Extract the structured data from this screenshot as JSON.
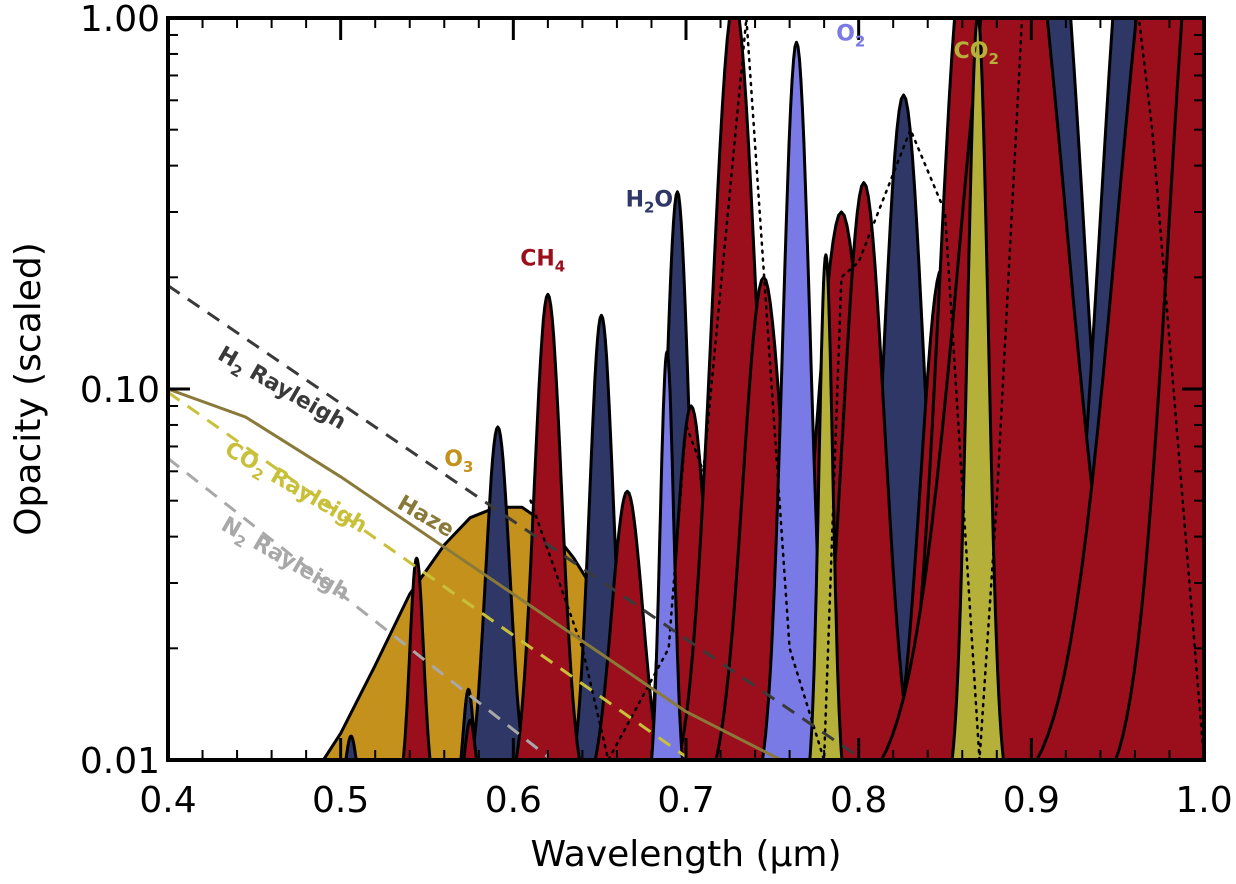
{
  "chart_data": {
    "type": "area",
    "title": "",
    "xlabel": "Wavelength (μm)",
    "ylabel": "Opacity (scaled)",
    "xlim": [
      0.4,
      1.0
    ],
    "ylim": [
      0.01,
      1.0
    ],
    "yscale": "log",
    "x_ticks": [
      {
        "value": 0.4,
        "label": "0.4"
      },
      {
        "value": 0.5,
        "label": "0.5"
      },
      {
        "value": 0.6,
        "label": "0.6"
      },
      {
        "value": 0.7,
        "label": "0.7"
      },
      {
        "value": 0.8,
        "label": "0.8"
      },
      {
        "value": 0.9,
        "label": "0.9"
      },
      {
        "value": 1.0,
        "label": "1.0"
      }
    ],
    "y_ticks": [
      {
        "value": 0.01,
        "label": "0.01"
      },
      {
        "value": 0.1,
        "label": "0.10"
      },
      {
        "value": 1.0,
        "label": "1.00"
      }
    ],
    "filled_series": [
      {
        "name": "O3",
        "label": "O3",
        "label_main": "O",
        "label_sub": "3",
        "color": "#c4921c",
        "points": [
          [
            0.49,
            0.01
          ],
          [
            0.5,
            0.0118
          ],
          [
            0.52,
            0.018
          ],
          [
            0.54,
            0.028
          ],
          [
            0.56,
            0.038
          ],
          [
            0.575,
            0.045
          ],
          [
            0.59,
            0.048
          ],
          [
            0.605,
            0.048
          ],
          [
            0.62,
            0.043
          ],
          [
            0.635,
            0.035
          ],
          [
            0.65,
            0.027
          ]
        ]
      },
      {
        "name": "H2O",
        "label": "H2O",
        "label_main": "H",
        "label_sub": "2",
        "label_tail": "O",
        "color": "#2e3766",
        "peaks": [
          [
            0.506,
            0.0116,
            0.003
          ],
          [
            0.574,
            0.0155,
            0.003
          ],
          [
            0.591,
            0.079,
            0.007
          ],
          [
            0.651,
            0.158,
            0.007
          ],
          [
            0.695,
            0.34,
            0.007
          ],
          [
            0.826,
            0.62,
            0.012
          ],
          [
            0.865,
            1.6,
            0.017
          ],
          [
            0.935,
            0.026,
            0.015
          ],
          [
            0.91,
            3.0,
            0.02
          ],
          [
            0.96,
            3.0,
            0.02
          ]
        ]
      },
      {
        "name": "CH4",
        "label": "CH4",
        "label_main": "CH",
        "label_sub": "4",
        "color": "#9b0e1c",
        "peaks": [
          [
            0.544,
            0.035,
            0.004
          ],
          [
            0.575,
            0.0128,
            0.003
          ],
          [
            0.62,
            0.18,
            0.008
          ],
          [
            0.666,
            0.053,
            0.009
          ],
          [
            0.703,
            0.09,
            0.009
          ],
          [
            0.728,
            1.12,
            0.013
          ],
          [
            0.745,
            0.2,
            0.012
          ],
          [
            0.79,
            0.3,
            0.015
          ],
          [
            0.803,
            0.36,
            0.012
          ],
          [
            0.848,
            0.21,
            0.012
          ],
          [
            0.862,
            1.6,
            0.015
          ],
          [
            0.89,
            3.0,
            0.03
          ],
          [
            0.98,
            3.0,
            0.03
          ],
          [
            1.0,
            3.0,
            0.02
          ]
        ]
      },
      {
        "name": "O2",
        "label": "O2",
        "label_main": "O",
        "label_sub": "2",
        "color": "#7a7ae6",
        "peaks": [
          [
            0.689,
            0.126,
            0.004
          ],
          [
            0.764,
            0.86,
            0.008
          ]
        ]
      },
      {
        "name": "CO2",
        "label": "CO2",
        "label_main": "CO",
        "label_sub": "2",
        "color": "#b5b03a",
        "peaks": [
          [
            0.781,
            0.23,
            0.004
          ],
          [
            0.869,
            1.02,
            0.006
          ]
        ]
      }
    ],
    "line_series": [
      {
        "name": "H2 Rayleigh",
        "label": "H2 Rayleigh",
        "label_main": "H",
        "label_sub": "2",
        "label_tail": " Rayleigh",
        "color": "#3a3a3a",
        "dash": "dashed",
        "x": [
          0.4,
          0.8
        ],
        "y": [
          0.19,
          0.0102
        ]
      },
      {
        "name": "Haze",
        "label": "Haze",
        "label_main": "Haze",
        "label_sub": "",
        "label_tail": "",
        "color": "#8a7a3a",
        "dash": "solid",
        "x": [
          0.4,
          0.445,
          0.5,
          0.6,
          0.7,
          0.755
        ],
        "y": [
          0.1,
          0.084,
          0.058,
          0.028,
          0.0135,
          0.01
        ]
      },
      {
        "name": "CO2 Rayleigh",
        "label": "CO2 Rayleigh",
        "label_main": "CO",
        "label_sub": "2",
        "label_tail": " Rayleigh",
        "color": "#c9c03a",
        "dash": "dashed",
        "x": [
          0.4,
          0.7
        ],
        "y": [
          0.098,
          0.0102
        ]
      },
      {
        "name": "N2 Rayleigh",
        "label": "N2 Rayleigh",
        "label_main": "N",
        "label_sub": "2",
        "label_tail": " Rayleigh",
        "color": "#a8a8a8",
        "dash": "dashed",
        "x": [
          0.4,
          0.62
        ],
        "y": [
          0.065,
          0.0102
        ]
      }
    ],
    "dotted_overlays": [
      {
        "name": "dotted-overlay",
        "color": "#000000",
        "x": [
          0.61,
          0.64,
          0.655,
          0.69,
          0.7,
          0.71,
          0.735,
          0.76,
          0.78,
          0.79,
          0.8,
          0.83,
          0.85,
          0.87,
          0.88,
          0.9,
          0.93,
          0.95,
          0.97,
          1.0
        ],
        "y": [
          0.05,
          0.02,
          0.01,
          0.02,
          0.08,
          0.06,
          1.0,
          0.02,
          0.01,
          0.2,
          0.22,
          0.5,
          0.3,
          0.01,
          0.05,
          3.0,
          3.0,
          3.0,
          0.5,
          0.01
        ]
      }
    ]
  }
}
